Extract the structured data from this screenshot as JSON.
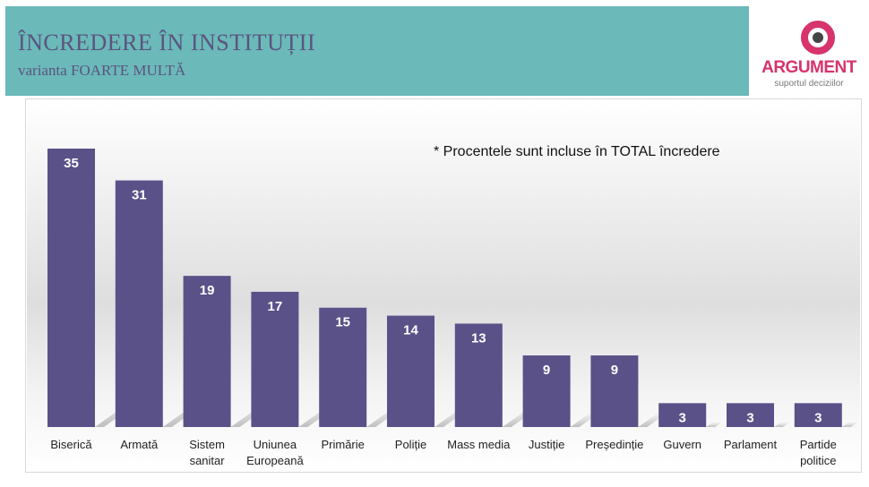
{
  "header": {
    "title": "ÎNCREDERE ÎN INSTITUȚII",
    "subtitle": "varianta FOARTE MULTĂ"
  },
  "logo": {
    "name": "ARGUMENT",
    "tagline": "suportul deciziilor",
    "colors": {
      "ring": "#d7336c",
      "core": "#444444"
    }
  },
  "note": "* Procentele sunt incluse în TOTAL încredere",
  "colors": {
    "header_band": "#6bb9b9",
    "title_text": "#5b5480",
    "bar": "#5a5189",
    "bar_label": "#ffffff",
    "category_text": "#222222"
  },
  "chart_data": {
    "type": "bar",
    "title": "",
    "xlabel": "",
    "ylabel": "",
    "ylim": [
      0,
      35
    ],
    "grid": false,
    "legend": "none",
    "categories": [
      "Biserică",
      "Armată",
      "Sistem sanitar",
      "Uniunea Europeană",
      "Primărie",
      "Poliție",
      "Mass media",
      "Justiție",
      "Președinție",
      "Guvern",
      "Parlament",
      "Partide politice"
    ],
    "category_lines": [
      [
        "Biserică"
      ],
      [
        "Armată"
      ],
      [
        "Sistem",
        "sanitar"
      ],
      [
        "Uniunea",
        "Europeană"
      ],
      [
        "Primărie"
      ],
      [
        "Poliție"
      ],
      [
        "Mass media"
      ],
      [
        "Justiție"
      ],
      [
        "Președinție"
      ],
      [
        "Guvern"
      ],
      [
        "Parlament"
      ],
      [
        "Partide",
        "politice"
      ]
    ],
    "values": [
      35,
      31,
      19,
      17,
      15,
      14,
      13,
      9,
      9,
      3,
      3,
      3
    ]
  }
}
